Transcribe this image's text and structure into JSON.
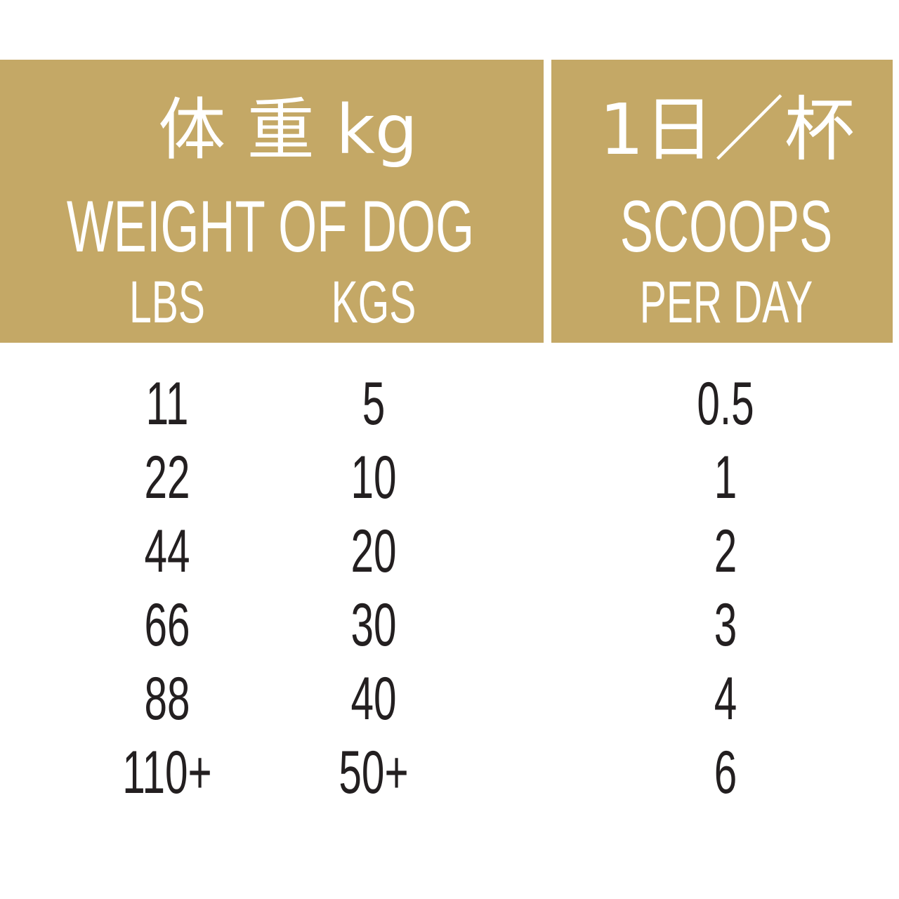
{
  "colors": {
    "header_bg": "#c4a866",
    "header_text": "#ffffff",
    "body_text": "#231f20"
  },
  "header": {
    "weight_jp": "体 重 kg",
    "weight_en": "WEIGHT OF DOG",
    "lbs": "LBS",
    "kgs": "KGS",
    "scoops_jp": "1日／杯",
    "scoops_en": "SCOOPS",
    "per_day": "PER DAY"
  },
  "rows": [
    {
      "lbs": "11",
      "kgs": "5",
      "scoops": "0.5"
    },
    {
      "lbs": "22",
      "kgs": "10",
      "scoops": "1"
    },
    {
      "lbs": "44",
      "kgs": "20",
      "scoops": "2"
    },
    {
      "lbs": "66",
      "kgs": "30",
      "scoops": "3"
    },
    {
      "lbs": "88",
      "kgs": "40",
      "scoops": "4"
    },
    {
      "lbs": "110+",
      "kgs": "50+",
      "scoops": "6"
    }
  ]
}
